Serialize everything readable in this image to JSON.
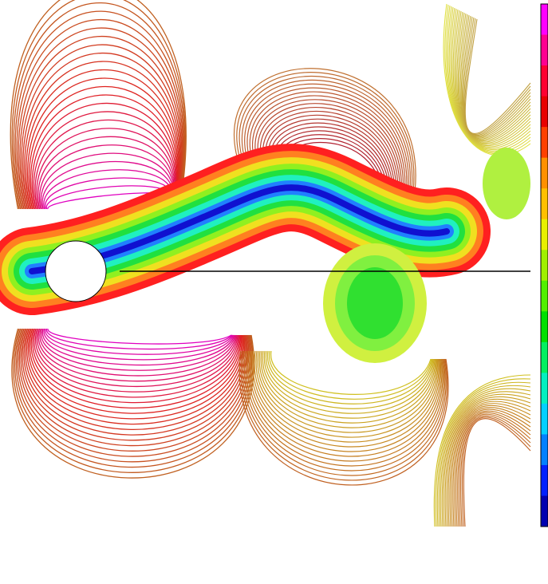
{
  "colorbar": {
    "colors": [
      "#ff00ff",
      "#ff0090",
      "#ff0030",
      "#e80000",
      "#ff4000",
      "#ff9000",
      "#ffc000",
      "#e8f000",
      "#a0f000",
      "#50f000",
      "#00e000",
      "#00f060",
      "#00f0c0",
      "#00d0ff",
      "#0080ff",
      "#0020ff",
      "#0000b0"
    ]
  }
}
